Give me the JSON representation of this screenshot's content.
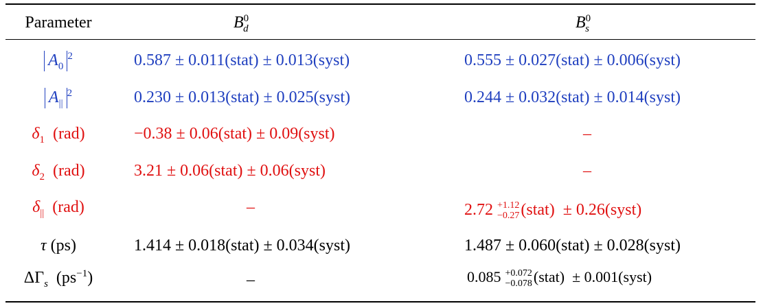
{
  "table": {
    "header": {
      "parameter": "Parameter",
      "bd": {
        "base": "B",
        "sub": "d",
        "sup": "0"
      },
      "bs": {
        "base": "B",
        "sub": "s",
        "sup": "0"
      }
    },
    "rows": [
      {
        "label": {
          "symbol": "A",
          "sub": "0",
          "sup": "2"
        },
        "bd": "0.587 ± 0.011(stat) ± 0.013(syst)",
        "bs": "0.555 ± 0.027(stat) ± 0.006(syst)"
      },
      {
        "label": {
          "symbol": "A",
          "sub": "||",
          "sup": "2"
        },
        "bd": "0.230 ± 0.013(stat) ± 0.025(syst)",
        "bs": "0.244 ± 0.032(stat) ± 0.014(syst)"
      },
      {
        "label": {
          "symbol": "δ",
          "sub": "1",
          "unit": "(rad)"
        },
        "bd": "−0.38 ± 0.06(stat) ± 0.09(syst)",
        "bs": "–"
      },
      {
        "label": {
          "symbol": "δ",
          "sub": "2",
          "unit": "(rad)"
        },
        "bd": "3.21 ± 0.06(stat) ± 0.06(syst)",
        "bs": "–"
      },
      {
        "label": {
          "symbol": "δ",
          "sub": "||",
          "unit": "(rad)"
        },
        "bd": "–",
        "bs": {
          "central": "2.72",
          "plus": "+1.12",
          "minus": "−0.27",
          "rest": "(stat)  ± 0.26(syst)"
        }
      },
      {
        "label": {
          "symbol": "τ",
          "unit": "(ps)"
        },
        "bd": "1.414 ± 0.018(stat) ± 0.034(syst)",
        "bs": "1.487 ± 0.060(stat) ± 0.028(syst)"
      },
      {
        "label": {
          "symbol": "ΔΓ",
          "sub": "s",
          "unit_open": "(ps",
          "unit_sup": "−1",
          "unit_close": ")"
        },
        "bd": "–",
        "bs": {
          "central": "0.085",
          "plus": "+0.072",
          "minus": "−0.078",
          "rest": "(stat)  ± 0.001(syst)"
        }
      }
    ]
  }
}
